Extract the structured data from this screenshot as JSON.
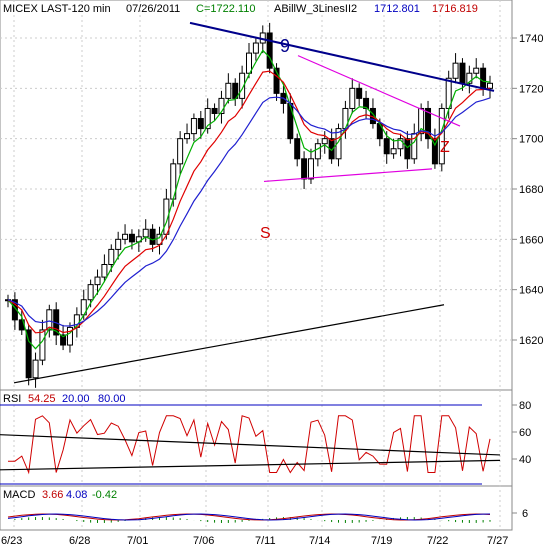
{
  "header": {
    "symbol": "MICEX LAST-120 min",
    "date": "07/26/2011",
    "close": "C=1722.110",
    "indicator": "ABillW_3LinesII2",
    "v1": "1712.801",
    "v2": "1716.819"
  },
  "annotations": {
    "nine": "9",
    "s": "S",
    "z": "Z"
  },
  "rsi_header": {
    "name": "RSI",
    "value": "54.25",
    "lo": "20.00",
    "hi": "80.00"
  },
  "macd_header": {
    "name": "MACD",
    "v1": "3.66",
    "v2": "4.08",
    "v3": "-0.42"
  },
  "chart_data": [
    {
      "type": "candlestick",
      "title": "MICEX LAST-120 min",
      "y_ticks": [
        1620,
        1640,
        1660,
        1680,
        1700,
        1720,
        1740
      ],
      "ylim": [
        1598,
        1752
      ],
      "x_ticks": [
        "6/23",
        "6/28",
        "7/01",
        "7/06",
        "7/11",
        "7/14",
        "7/19",
        "7/22",
        "7/27"
      ],
      "grid": true,
      "closes": [
        1636,
        1628,
        1624,
        1605,
        1612,
        1624,
        1632,
        1622,
        1618,
        1625,
        1630,
        1636,
        1642,
        1645,
        1650,
        1656,
        1660,
        1662,
        1659,
        1661,
        1664,
        1658,
        1662,
        1676,
        1690,
        1700,
        1702,
        1708,
        1704,
        1712,
        1710,
        1716,
        1722,
        1716,
        1726,
        1734,
        1738,
        1742,
        1728,
        1718,
        1714,
        1700,
        1692,
        1684,
        1692,
        1698,
        1700,
        1692,
        1704,
        1712,
        1720,
        1716,
        1712,
        1706,
        1700,
        1694,
        1696,
        1700,
        1692,
        1702,
        1712,
        1700,
        1690,
        1712,
        1724,
        1730,
        1722,
        1726,
        1728,
        1720,
        1722
      ],
      "series": [
        {
          "name": "green MA",
          "color": "#00b000"
        },
        {
          "name": "red MA",
          "color": "#e00000"
        },
        {
          "name": "blue MA",
          "color": "#2020d0"
        }
      ],
      "trendlines": [
        {
          "label": "9",
          "color": "#00008b",
          "from": [
            190,
            1746
          ],
          "to": [
            494,
            1719
          ]
        },
        {
          "color": "#e000e0",
          "from": [
            298,
            1733
          ],
          "to": [
            460,
            1705
          ]
        },
        {
          "color": "#e000e0",
          "from": [
            264,
            1683
          ],
          "to": [
            432,
            1688
          ]
        },
        {
          "color": "#000000",
          "from": [
            14,
            1603
          ],
          "to": [
            444,
            1634
          ]
        }
      ]
    },
    {
      "type": "line",
      "title": "RSI",
      "values": [
        54.25,
        20.0,
        80.0
      ],
      "y_ticks": [
        40,
        60,
        80
      ],
      "ylim": [
        28,
        82
      ],
      "levels": [
        20,
        80
      ]
    },
    {
      "type": "bar",
      "title": "MACD",
      "values": [
        3.66,
        4.08,
        -0.42
      ],
      "y_ticks": [
        6
      ]
    }
  ]
}
